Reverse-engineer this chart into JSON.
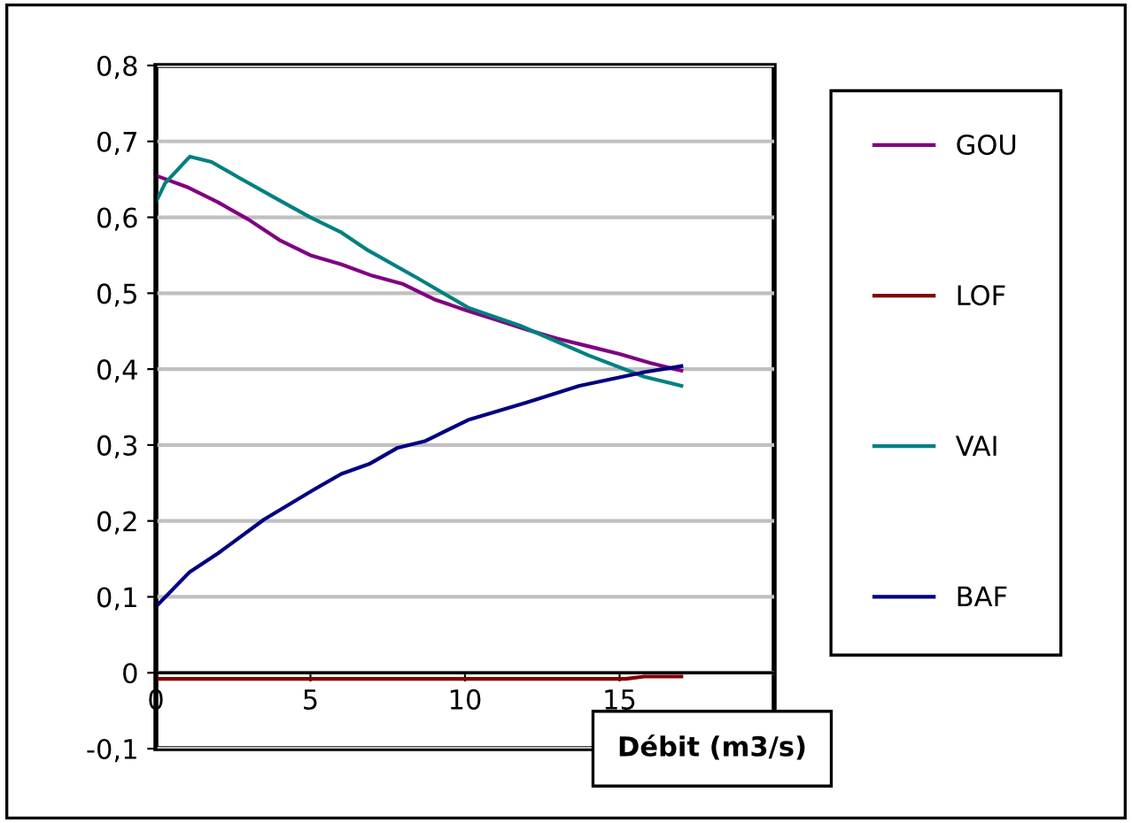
{
  "chart_data": {
    "type": "line",
    "xlabel": "Débit (m3/s)",
    "xlim": [
      0,
      20
    ],
    "ylim": [
      -0.1,
      0.8
    ],
    "xticks": [
      0,
      5,
      10,
      15
    ],
    "yticks": [
      {
        "value": -0.1,
        "label": "-0,1"
      },
      {
        "value": 0,
        "label": "0"
      },
      {
        "value": 0.1,
        "label": "0,1"
      },
      {
        "value": 0.2,
        "label": "0,2"
      },
      {
        "value": 0.3,
        "label": "0,3"
      },
      {
        "value": 0.4,
        "label": "0,4"
      },
      {
        "value": 0.5,
        "label": "0,5"
      },
      {
        "value": 0.6,
        "label": "0,6"
      },
      {
        "value": 0.7,
        "label": "0,7"
      },
      {
        "value": 0.8,
        "label": "0,8"
      }
    ],
    "grid": "y",
    "legend": "right",
    "marker": "none",
    "line_style": "solid",
    "series": [
      {
        "name": "GOU",
        "color": "#800080",
        "x": [
          0,
          1,
          2,
          3,
          4,
          5,
          6,
          7,
          8,
          9,
          10,
          11,
          12,
          13,
          14,
          15,
          16,
          17
        ],
        "values": [
          0.655,
          0.64,
          0.62,
          0.597,
          0.57,
          0.55,
          0.538,
          0.523,
          0.512,
          0.492,
          0.478,
          0.465,
          0.452,
          0.44,
          0.43,
          0.42,
          0.408,
          0.398
        ]
      },
      {
        "name": "LOF",
        "color": "#800000",
        "x": [
          0,
          15.2,
          15.8,
          17
        ],
        "values": [
          -0.008,
          -0.008,
          -0.005,
          -0.005
        ]
      },
      {
        "name": "VAI",
        "color": "#008080",
        "x": [
          0,
          0.3,
          1.1,
          1.8,
          2.7,
          4.1,
          5,
          6,
          6.8,
          8.5,
          10.1,
          11.8,
          14,
          15.8,
          17
        ],
        "values": [
          0.62,
          0.645,
          0.68,
          0.673,
          0.652,
          0.62,
          0.6,
          0.58,
          0.558,
          0.519,
          0.481,
          0.457,
          0.418,
          0.39,
          0.378
        ]
      },
      {
        "name": "BAF",
        "color": "#000080",
        "x": [
          0,
          1.1,
          2,
          3.5,
          5.1,
          6,
          6.9,
          7.8,
          8.7,
          10.1,
          12,
          13.7,
          15.8,
          17
        ],
        "values": [
          0.087,
          0.133,
          0.157,
          0.202,
          0.241,
          0.262,
          0.275,
          0.296,
          0.305,
          0.333,
          0.356,
          0.378,
          0.396,
          0.404
        ]
      }
    ]
  }
}
